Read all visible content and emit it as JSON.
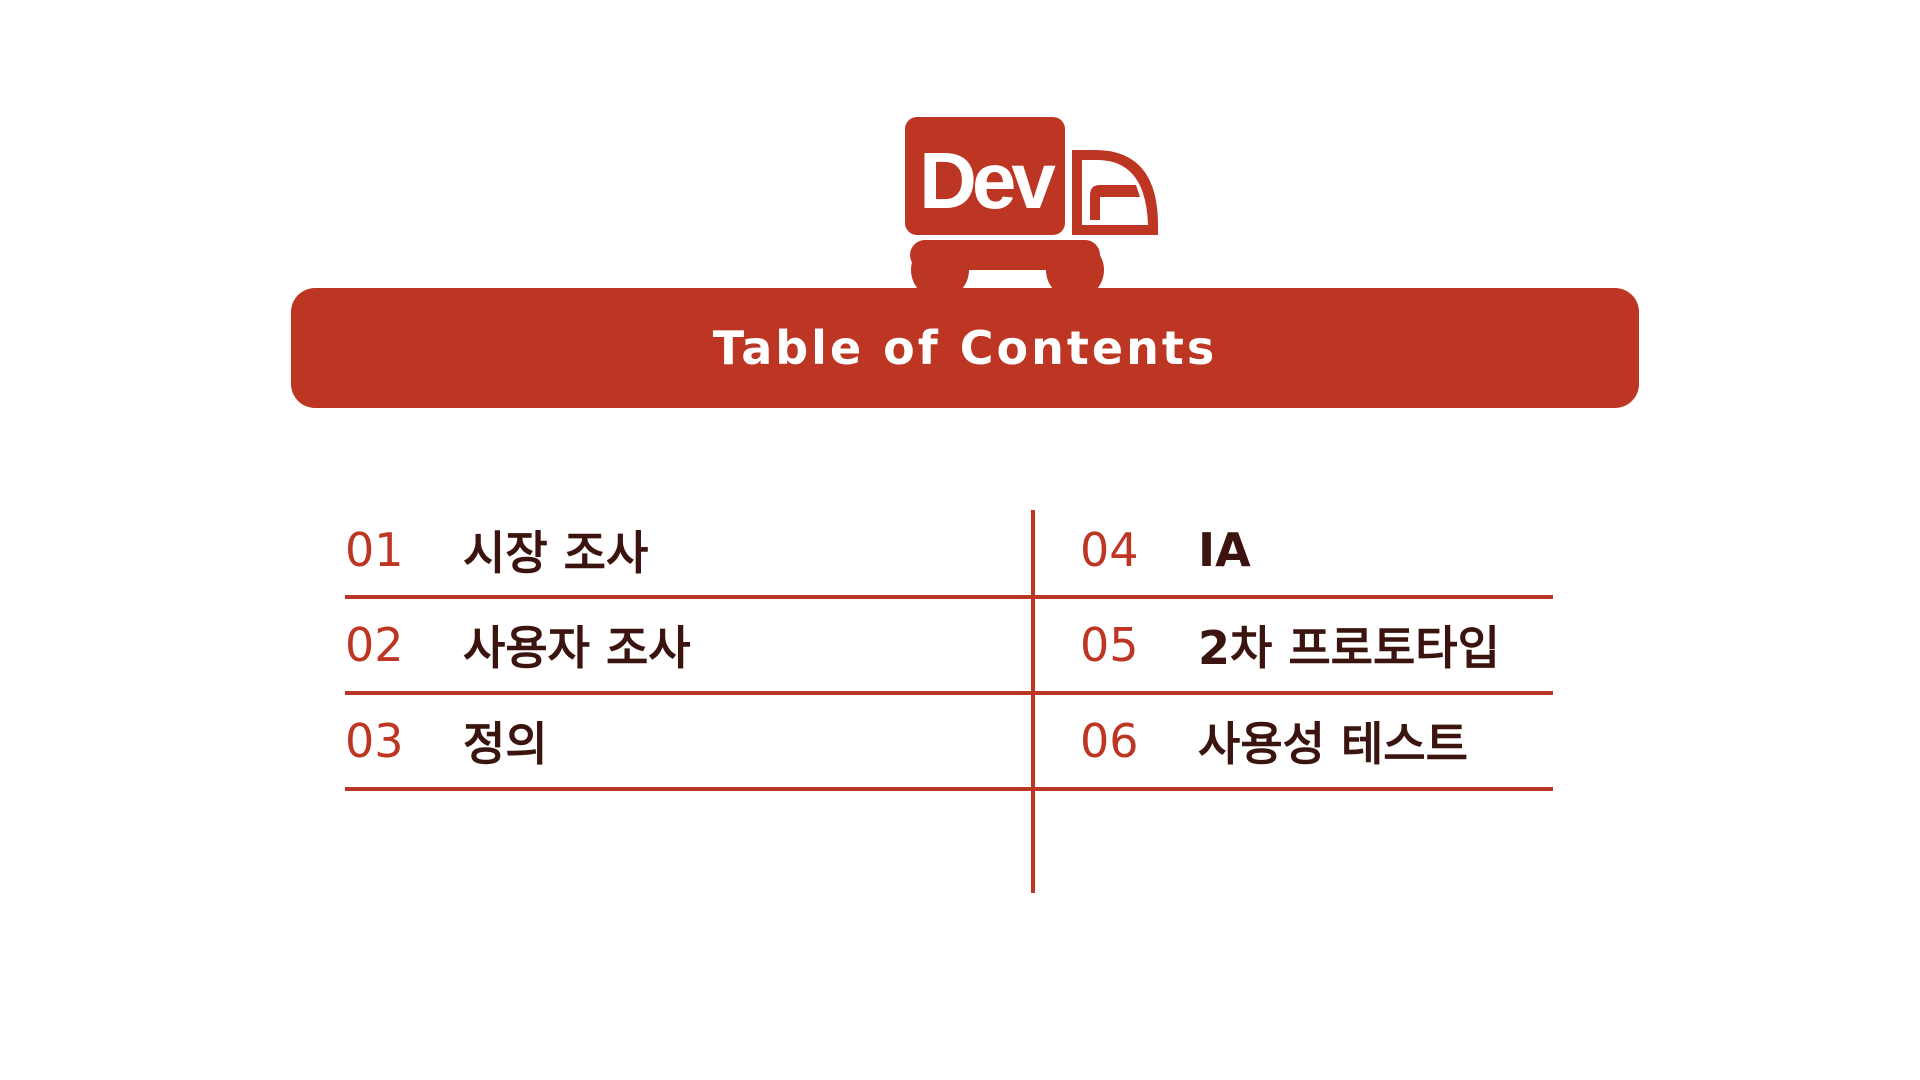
{
  "logo": {
    "text": "Dev",
    "color": "#bd3523"
  },
  "header": {
    "title": "Table of Contents"
  },
  "toc": {
    "left": [
      {
        "num": "01",
        "label": "시장 조사"
      },
      {
        "num": "02",
        "label": "사용자 조사"
      },
      {
        "num": "03",
        "label": "정의"
      }
    ],
    "right": [
      {
        "num": "04",
        "label": "IA"
      },
      {
        "num": "05",
        "label": "2차 프로토타입"
      },
      {
        "num": "06",
        "label": "사용성 테스트"
      }
    ]
  },
  "colors": {
    "accent": "#bd3523",
    "text": "#3b1410",
    "background": "#ffffff"
  }
}
